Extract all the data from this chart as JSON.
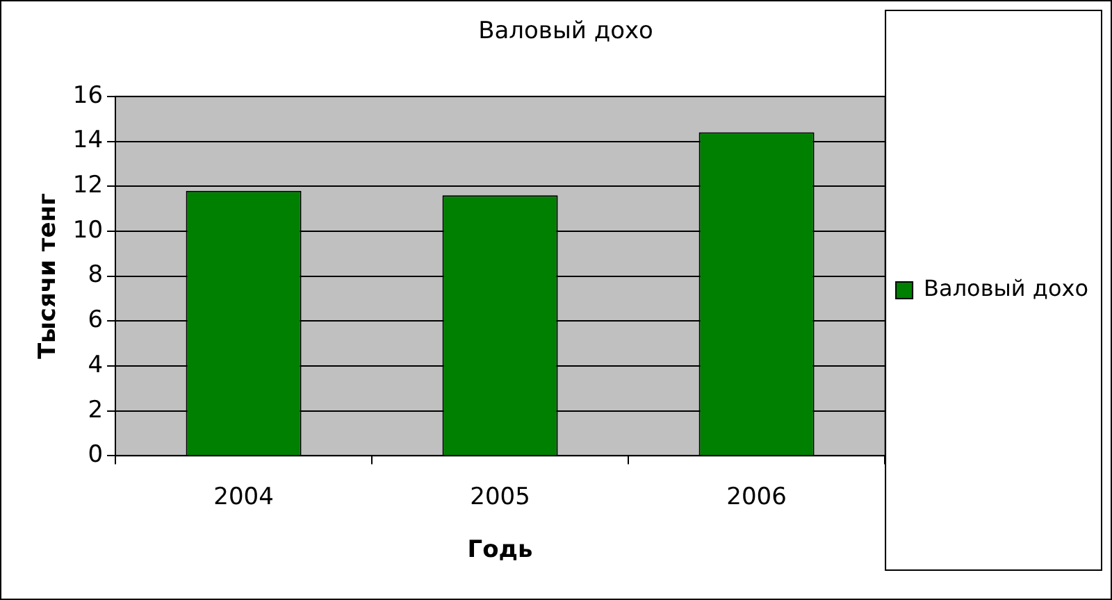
{
  "chart_data": {
    "type": "bar",
    "title": "Валовый дохо",
    "xlabel": "Годь",
    "ylabel": "Тысячи тенг",
    "categories": [
      "2004",
      "2005",
      "2006"
    ],
    "series": [
      {
        "name": "Валовый дохо",
        "color": "#008000",
        "values": [
          11.8,
          11.6,
          14.4
        ]
      }
    ],
    "ylim": [
      0,
      16
    ],
    "yticks": [
      0,
      2,
      4,
      6,
      8,
      10,
      12,
      14,
      16
    ],
    "grid": "y",
    "legend": "right"
  }
}
